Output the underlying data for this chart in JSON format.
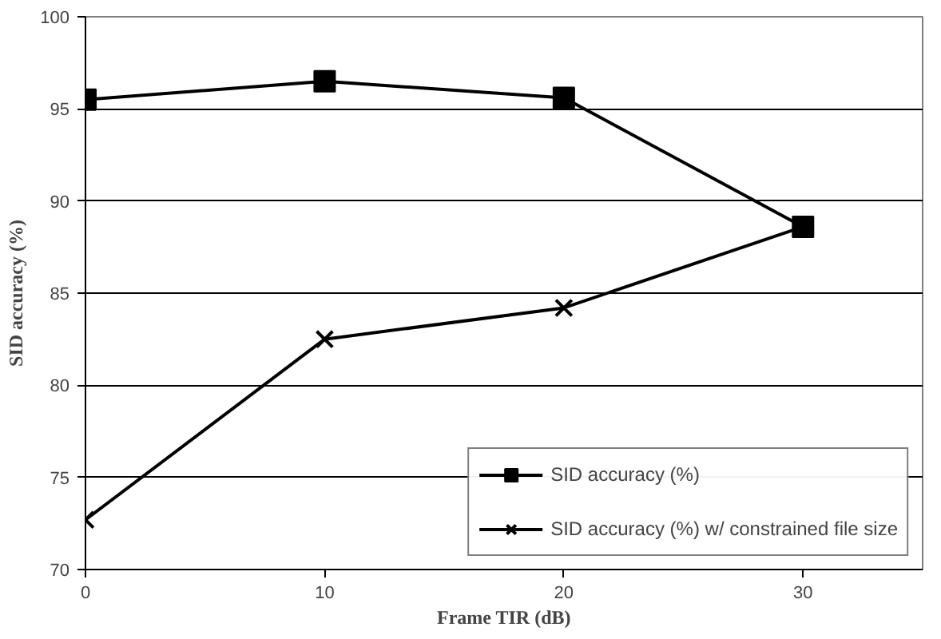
{
  "chart_data": {
    "type": "line",
    "xlabel": "Frame TIR (dB)",
    "ylabel": "SID accuracy (%)",
    "x": [
      0,
      10,
      20,
      30
    ],
    "series": [
      {
        "name": "SID accuracy (%)",
        "color": "#000000",
        "marker": "square",
        "values": [
          95.5,
          96.5,
          95.6,
          88.6
        ]
      },
      {
        "name": "SID accuracy (%) w/ constrained file size",
        "color": "#000000",
        "marker": "cross",
        "values": [
          72.7,
          82.5,
          84.2,
          88.6
        ]
      }
    ],
    "xlim": [
      0,
      35
    ],
    "xticks": [
      0,
      10,
      20,
      30
    ],
    "ylim": [
      70,
      100
    ],
    "yticks": [
      70,
      75,
      80,
      85,
      90,
      95,
      100
    ],
    "grid": "y",
    "legend": "bottom right",
    "line_style": "solid"
  }
}
